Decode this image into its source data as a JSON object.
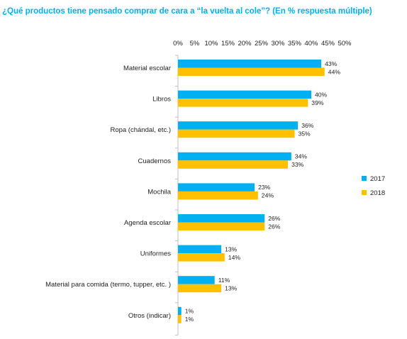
{
  "chart_data": {
    "type": "bar",
    "orientation": "horizontal",
    "title": "¿Qué productos tiene pensado comprar de cara a “la vuelta al cole”? (En % respuesta múltiple)",
    "xlim": [
      0,
      50
    ],
    "x_ticks": [
      0,
      5,
      10,
      15,
      20,
      25,
      30,
      35,
      40,
      45,
      50
    ],
    "tick_suffix": "%",
    "x_axis_position": "top",
    "grid": false,
    "legend_position": "right",
    "categories": [
      "Material escolar",
      "Libros",
      "Ropa (chándal, etc.)",
      "Cuadernos",
      "Mochila",
      "Agenda escolar",
      "Uniformes",
      "Material para comida (termo, tupper, etc. )",
      "Otros (indicar)"
    ],
    "series": [
      {
        "name": "2017",
        "color": "#00b0f0",
        "values": [
          43,
          40,
          36,
          34,
          23,
          26,
          13,
          11,
          1
        ]
      },
      {
        "name": "2018",
        "color": "#ffc000",
        "values": [
          44,
          39,
          35,
          33,
          24,
          26,
          14,
          13,
          1
        ]
      }
    ]
  }
}
